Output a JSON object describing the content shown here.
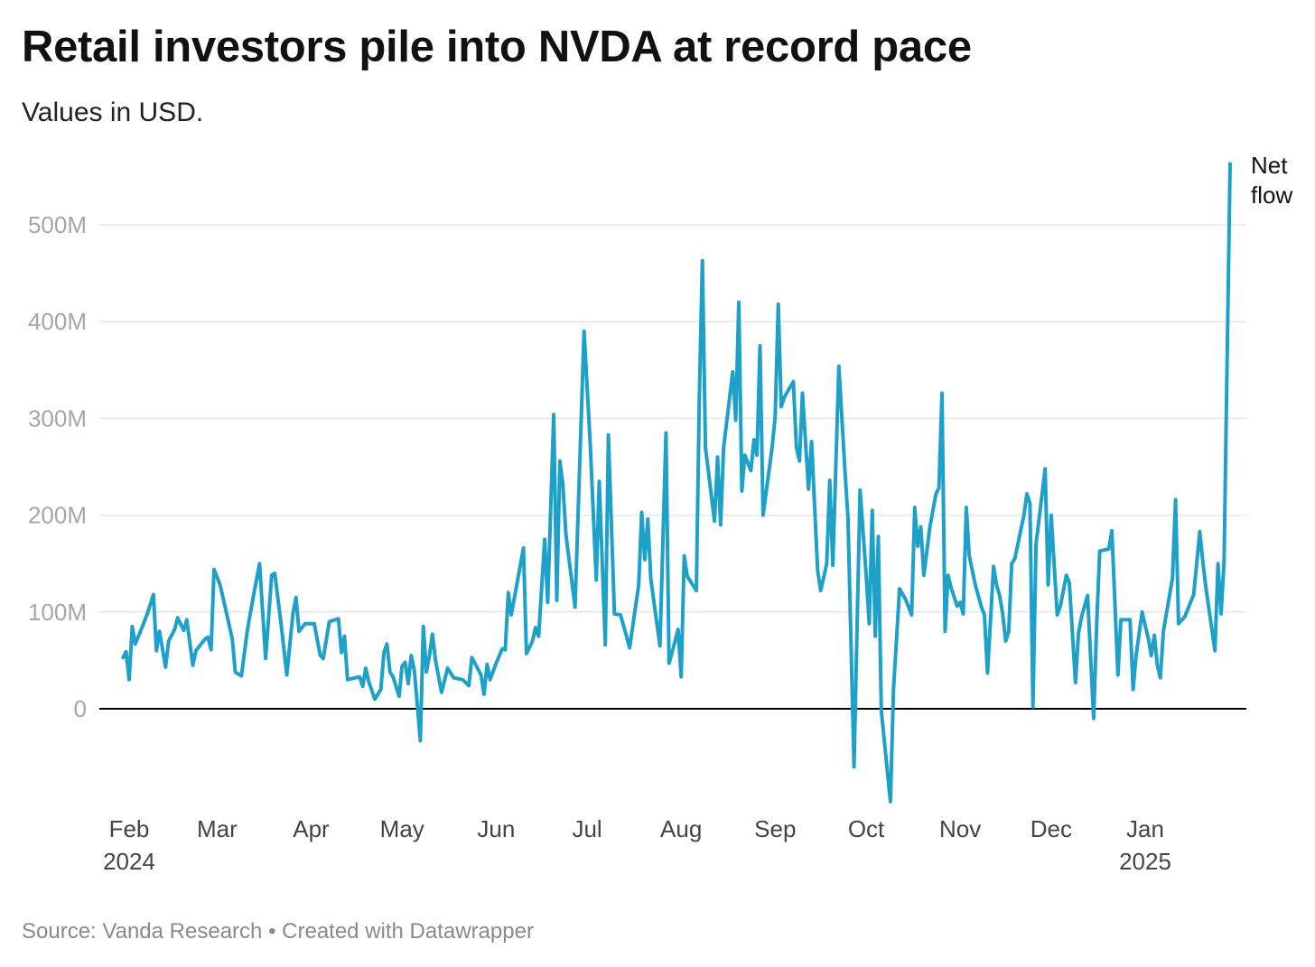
{
  "title": "Retail investors pile into NVDA at record pace",
  "subtitle": "Values in USD.",
  "footer": {
    "source": "Source: Vanda Research",
    "separator": "•",
    "credit": "Created with Datawrapper"
  },
  "colors": {
    "line": "#1ea1c9",
    "grid": "#e6e6e6",
    "zero": "#000000"
  },
  "chart_data": {
    "type": "line",
    "title": "Retail investors pile into NVDA at record pace",
    "subtitle": "Values in USD.",
    "xlabel": "",
    "ylabel": "",
    "ylim": [
      -100000000,
      560000000
    ],
    "yticks": [
      0,
      100000000,
      200000000,
      300000000,
      400000000,
      500000000
    ],
    "ytick_labels": [
      "0",
      "100M",
      "200M",
      "300M",
      "400M",
      "500M"
    ],
    "xlim": [
      "2024-01-29",
      "2025-01-31"
    ],
    "xticks": [
      {
        "date": "2024-02-01",
        "label": "Feb",
        "sub": "2024"
      },
      {
        "date": "2024-03-01",
        "label": "Mar",
        "sub": ""
      },
      {
        "date": "2024-04-01",
        "label": "Apr",
        "sub": ""
      },
      {
        "date": "2024-05-01",
        "label": "May",
        "sub": ""
      },
      {
        "date": "2024-06-01",
        "label": "Jun",
        "sub": ""
      },
      {
        "date": "2024-07-01",
        "label": "Jul",
        "sub": ""
      },
      {
        "date": "2024-08-01",
        "label": "Aug",
        "sub": ""
      },
      {
        "date": "2024-09-01",
        "label": "Sep",
        "sub": ""
      },
      {
        "date": "2024-10-01",
        "label": "Oct",
        "sub": ""
      },
      {
        "date": "2024-11-01",
        "label": "Nov",
        "sub": ""
      },
      {
        "date": "2024-12-01",
        "label": "Dec",
        "sub": ""
      },
      {
        "date": "2025-01-01",
        "label": "Jan",
        "sub": "2025"
      }
    ],
    "grid": true,
    "legend": "inline-end-label",
    "series": [
      {
        "name": "Net flow",
        "points": [
          [
            "2024-01-30",
            53000000
          ],
          [
            "2024-01-31",
            59000000
          ],
          [
            "2024-02-01",
            30000000
          ],
          [
            "2024-02-02",
            85000000
          ],
          [
            "2024-02-03",
            67000000
          ],
          [
            "2024-02-05",
            82000000
          ],
          [
            "2024-02-07",
            98000000
          ],
          [
            "2024-02-09",
            118000000
          ],
          [
            "2024-02-10",
            60000000
          ],
          [
            "2024-02-11",
            80000000
          ],
          [
            "2024-02-13",
            43000000
          ],
          [
            "2024-02-14",
            70000000
          ],
          [
            "2024-02-16",
            82000000
          ],
          [
            "2024-02-17",
            94000000
          ],
          [
            "2024-02-19",
            81000000
          ],
          [
            "2024-02-20",
            92000000
          ],
          [
            "2024-02-22",
            45000000
          ],
          [
            "2024-02-23",
            60000000
          ],
          [
            "2024-02-26",
            72000000
          ],
          [
            "2024-02-27",
            74000000
          ],
          [
            "2024-02-28",
            61000000
          ],
          [
            "2024-02-29",
            144000000
          ],
          [
            "2024-03-02",
            128000000
          ],
          [
            "2024-03-04",
            100000000
          ],
          [
            "2024-03-06",
            72000000
          ],
          [
            "2024-03-07",
            38000000
          ],
          [
            "2024-03-09",
            34000000
          ],
          [
            "2024-03-11",
            82000000
          ],
          [
            "2024-03-13",
            117000000
          ],
          [
            "2024-03-15",
            150000000
          ],
          [
            "2024-03-17",
            52000000
          ],
          [
            "2024-03-19",
            138000000
          ],
          [
            "2024-03-20",
            140000000
          ],
          [
            "2024-03-22",
            90000000
          ],
          [
            "2024-03-24",
            35000000
          ],
          [
            "2024-03-26",
            98000000
          ],
          [
            "2024-03-27",
            115000000
          ],
          [
            "2024-03-28",
            80000000
          ],
          [
            "2024-03-30",
            88000000
          ],
          [
            "2024-04-02",
            88000000
          ],
          [
            "2024-04-04",
            55000000
          ],
          [
            "2024-04-05",
            52000000
          ],
          [
            "2024-04-07",
            90000000
          ],
          [
            "2024-04-10",
            93000000
          ],
          [
            "2024-04-11",
            58000000
          ],
          [
            "2024-04-12",
            75000000
          ],
          [
            "2024-04-13",
            30000000
          ],
          [
            "2024-04-17",
            33000000
          ],
          [
            "2024-04-18",
            23000000
          ],
          [
            "2024-04-19",
            42000000
          ],
          [
            "2024-04-20",
            28000000
          ],
          [
            "2024-04-22",
            10000000
          ],
          [
            "2024-04-24",
            20000000
          ],
          [
            "2024-04-25",
            58000000
          ],
          [
            "2024-04-26",
            67000000
          ],
          [
            "2024-04-27",
            38000000
          ],
          [
            "2024-04-28",
            33000000
          ],
          [
            "2024-04-30",
            13000000
          ],
          [
            "2024-05-01",
            44000000
          ],
          [
            "2024-05-02",
            48000000
          ],
          [
            "2024-05-03",
            26000000
          ],
          [
            "2024-05-04",
            55000000
          ],
          [
            "2024-05-05",
            40000000
          ],
          [
            "2024-05-06",
            5000000
          ],
          [
            "2024-05-07",
            -33000000
          ],
          [
            "2024-05-08",
            85000000
          ],
          [
            "2024-05-09",
            38000000
          ],
          [
            "2024-05-10",
            55000000
          ],
          [
            "2024-05-11",
            77000000
          ],
          [
            "2024-05-12",
            50000000
          ],
          [
            "2024-05-14",
            17000000
          ],
          [
            "2024-05-16",
            42000000
          ],
          [
            "2024-05-18",
            32000000
          ],
          [
            "2024-05-21",
            30000000
          ],
          [
            "2024-05-23",
            24000000
          ],
          [
            "2024-05-24",
            53000000
          ],
          [
            "2024-05-27",
            35000000
          ],
          [
            "2024-05-28",
            15000000
          ],
          [
            "2024-05-29",
            46000000
          ],
          [
            "2024-05-30",
            30000000
          ],
          [
            "2024-06-01",
            47000000
          ],
          [
            "2024-06-03",
            62000000
          ],
          [
            "2024-06-04",
            61000000
          ],
          [
            "2024-06-05",
            120000000
          ],
          [
            "2024-06-06",
            97000000
          ],
          [
            "2024-06-10",
            166000000
          ],
          [
            "2024-06-11",
            57000000
          ],
          [
            "2024-06-13",
            70000000
          ],
          [
            "2024-06-14",
            84000000
          ],
          [
            "2024-06-15",
            75000000
          ],
          [
            "2024-06-17",
            175000000
          ],
          [
            "2024-06-18",
            110000000
          ],
          [
            "2024-06-20",
            304000000
          ],
          [
            "2024-06-21",
            112000000
          ],
          [
            "2024-06-22",
            256000000
          ],
          [
            "2024-06-23",
            232000000
          ],
          [
            "2024-06-24",
            180000000
          ],
          [
            "2024-06-27",
            105000000
          ],
          [
            "2024-06-30",
            390000000
          ],
          [
            "2024-07-02",
            276000000
          ],
          [
            "2024-07-04",
            133000000
          ],
          [
            "2024-07-05",
            235000000
          ],
          [
            "2024-07-07",
            66000000
          ],
          [
            "2024-07-08",
            283000000
          ],
          [
            "2024-07-10",
            98000000
          ],
          [
            "2024-07-12",
            97000000
          ],
          [
            "2024-07-14",
            75000000
          ],
          [
            "2024-07-15",
            63000000
          ],
          [
            "2024-07-18",
            128000000
          ],
          [
            "2024-07-19",
            203000000
          ],
          [
            "2024-07-20",
            154000000
          ],
          [
            "2024-07-21",
            196000000
          ],
          [
            "2024-07-22",
            134000000
          ],
          [
            "2024-07-25",
            65000000
          ],
          [
            "2024-07-27",
            285000000
          ],
          [
            "2024-07-28",
            47000000
          ],
          [
            "2024-07-30",
            70000000
          ],
          [
            "2024-07-31",
            82000000
          ],
          [
            "2024-08-01",
            33000000
          ],
          [
            "2024-08-02",
            158000000
          ],
          [
            "2024-08-03",
            137000000
          ],
          [
            "2024-08-06",
            122000000
          ],
          [
            "2024-08-07",
            322000000
          ],
          [
            "2024-08-08",
            463000000
          ],
          [
            "2024-08-09",
            270000000
          ],
          [
            "2024-08-12",
            194000000
          ],
          [
            "2024-08-13",
            260000000
          ],
          [
            "2024-08-14",
            190000000
          ],
          [
            "2024-08-15",
            270000000
          ],
          [
            "2024-08-18",
            348000000
          ],
          [
            "2024-08-19",
            298000000
          ],
          [
            "2024-08-20",
            420000000
          ],
          [
            "2024-08-21",
            225000000
          ],
          [
            "2024-08-22",
            262000000
          ],
          [
            "2024-08-24",
            246000000
          ],
          [
            "2024-08-25",
            278000000
          ],
          [
            "2024-08-26",
            262000000
          ],
          [
            "2024-08-27",
            375000000
          ],
          [
            "2024-08-28",
            200000000
          ],
          [
            "2024-08-31",
            270000000
          ],
          [
            "2024-09-01",
            302000000
          ],
          [
            "2024-09-02",
            418000000
          ],
          [
            "2024-09-03",
            312000000
          ],
          [
            "2024-09-04",
            322000000
          ],
          [
            "2024-09-07",
            338000000
          ],
          [
            "2024-09-08",
            270000000
          ],
          [
            "2024-09-09",
            256000000
          ],
          [
            "2024-09-10",
            326000000
          ],
          [
            "2024-09-12",
            227000000
          ],
          [
            "2024-09-13",
            276000000
          ],
          [
            "2024-09-15",
            143000000
          ],
          [
            "2024-09-16",
            122000000
          ],
          [
            "2024-09-18",
            150000000
          ],
          [
            "2024-09-19",
            236000000
          ],
          [
            "2024-09-20",
            148000000
          ],
          [
            "2024-09-22",
            354000000
          ],
          [
            "2024-09-24",
            247000000
          ],
          [
            "2024-09-25",
            197000000
          ],
          [
            "2024-09-27",
            -60000000
          ],
          [
            "2024-09-29",
            226000000
          ],
          [
            "2024-10-01",
            139000000
          ],
          [
            "2024-10-02",
            88000000
          ],
          [
            "2024-10-03",
            205000000
          ],
          [
            "2024-10-04",
            75000000
          ],
          [
            "2024-10-05",
            178000000
          ],
          [
            "2024-10-06",
            -2000000
          ],
          [
            "2024-10-09",
            -96000000
          ],
          [
            "2024-10-10",
            20000000
          ],
          [
            "2024-10-12",
            124000000
          ],
          [
            "2024-10-14",
            113000000
          ],
          [
            "2024-10-16",
            97000000
          ],
          [
            "2024-10-17",
            208000000
          ],
          [
            "2024-10-18",
            168000000
          ],
          [
            "2024-10-19",
            188000000
          ],
          [
            "2024-10-20",
            138000000
          ],
          [
            "2024-10-22",
            188000000
          ],
          [
            "2024-10-24",
            222000000
          ],
          [
            "2024-10-25",
            228000000
          ],
          [
            "2024-10-26",
            326000000
          ],
          [
            "2024-10-27",
            80000000
          ],
          [
            "2024-10-28",
            138000000
          ],
          [
            "2024-10-29",
            125000000
          ],
          [
            "2024-10-31",
            106000000
          ],
          [
            "2024-11-01",
            110000000
          ],
          [
            "2024-11-02",
            98000000
          ],
          [
            "2024-11-03",
            208000000
          ],
          [
            "2024-11-04",
            158000000
          ],
          [
            "2024-11-06",
            128000000
          ],
          [
            "2024-11-08",
            105000000
          ],
          [
            "2024-11-09",
            97000000
          ],
          [
            "2024-11-10",
            37000000
          ],
          [
            "2024-11-12",
            147000000
          ],
          [
            "2024-11-13",
            128000000
          ],
          [
            "2024-11-14",
            117000000
          ],
          [
            "2024-11-15",
            98000000
          ],
          [
            "2024-11-16",
            70000000
          ],
          [
            "2024-11-17",
            80000000
          ],
          [
            "2024-11-18",
            150000000
          ],
          [
            "2024-11-19",
            155000000
          ],
          [
            "2024-11-22",
            200000000
          ],
          [
            "2024-11-23",
            222000000
          ],
          [
            "2024-11-24",
            212000000
          ],
          [
            "2024-11-25",
            2000000
          ],
          [
            "2024-11-26",
            170000000
          ],
          [
            "2024-11-29",
            248000000
          ],
          [
            "2024-11-30",
            128000000
          ],
          [
            "2024-12-01",
            200000000
          ],
          [
            "2024-12-02",
            147000000
          ],
          [
            "2024-12-03",
            97000000
          ],
          [
            "2024-12-04",
            106000000
          ],
          [
            "2024-12-06",
            138000000
          ],
          [
            "2024-12-07",
            130000000
          ],
          [
            "2024-12-09",
            27000000
          ],
          [
            "2024-12-10",
            78000000
          ],
          [
            "2024-12-11",
            95000000
          ],
          [
            "2024-12-13",
            117000000
          ],
          [
            "2024-12-15",
            -10000000
          ],
          [
            "2024-12-16",
            88000000
          ],
          [
            "2024-12-17",
            163000000
          ],
          [
            "2024-12-20",
            165000000
          ],
          [
            "2024-12-21",
            184000000
          ],
          [
            "2024-12-23",
            35000000
          ],
          [
            "2024-12-24",
            92000000
          ],
          [
            "2024-12-27",
            92000000
          ],
          [
            "2024-12-28",
            20000000
          ],
          [
            "2024-12-29",
            55000000
          ],
          [
            "2024-12-31",
            100000000
          ],
          [
            "2025-01-01",
            86000000
          ],
          [
            "2025-01-02",
            73000000
          ],
          [
            "2025-01-03",
            55000000
          ],
          [
            "2025-01-04",
            76000000
          ],
          [
            "2025-01-05",
            45000000
          ],
          [
            "2025-01-06",
            32000000
          ],
          [
            "2025-01-07",
            80000000
          ],
          [
            "2025-01-10",
            135000000
          ],
          [
            "2025-01-11",
            216000000
          ],
          [
            "2025-01-12",
            88000000
          ],
          [
            "2025-01-14",
            95000000
          ],
          [
            "2025-01-17",
            118000000
          ],
          [
            "2025-01-19",
            183000000
          ],
          [
            "2025-01-20",
            152000000
          ],
          [
            "2025-01-21",
            125000000
          ],
          [
            "2025-01-24",
            60000000
          ],
          [
            "2025-01-25",
            150000000
          ],
          [
            "2025-01-26",
            98000000
          ],
          [
            "2025-01-27",
            152000000
          ],
          [
            "2025-01-29",
            563000000
          ]
        ]
      }
    ]
  }
}
